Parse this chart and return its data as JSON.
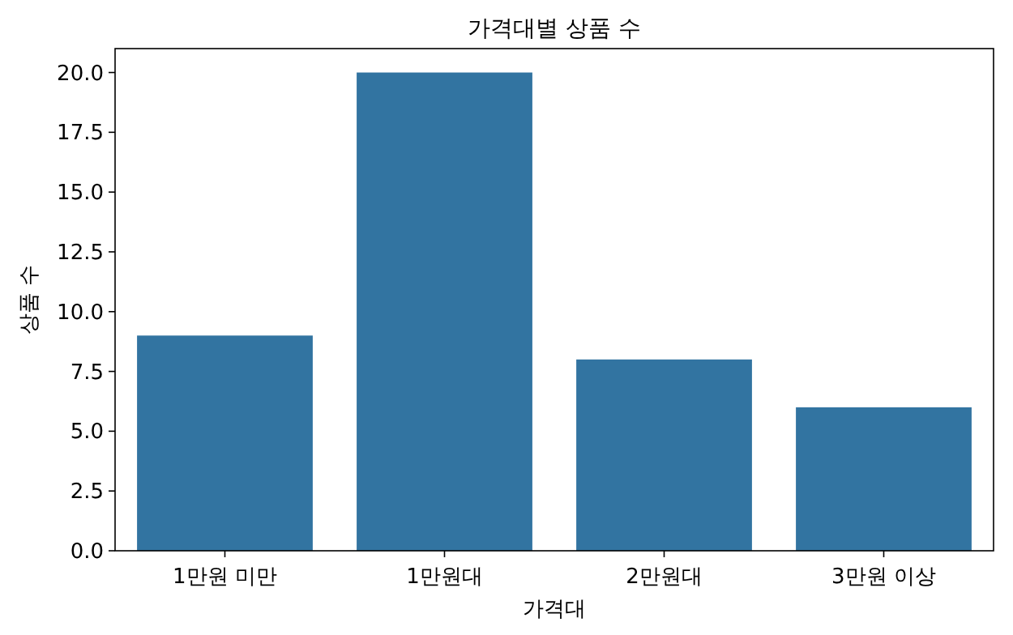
{
  "chart_data": {
    "type": "bar",
    "title": "가격대별 상품 수",
    "xlabel": "가격대",
    "ylabel": "상품 수",
    "categories": [
      "1만원 미만",
      "1만원대",
      "2만원대",
      "3만원 이상"
    ],
    "values": [
      9,
      20,
      8,
      6
    ],
    "color": "#3274a1",
    "ylim": [
      0,
      21
    ],
    "yticks": [
      {
        "value": 0,
        "label": "0.0"
      },
      {
        "value": 2.5,
        "label": "2.5"
      },
      {
        "value": 5,
        "label": "5.0"
      },
      {
        "value": 7.5,
        "label": "7.5"
      },
      {
        "value": 10,
        "label": "10.0"
      },
      {
        "value": 12.5,
        "label": "12.5"
      },
      {
        "value": 15,
        "label": "15.0"
      },
      {
        "value": 17.5,
        "label": "17.5"
      },
      {
        "value": 20,
        "label": "20.0"
      }
    ],
    "grid": false
  }
}
